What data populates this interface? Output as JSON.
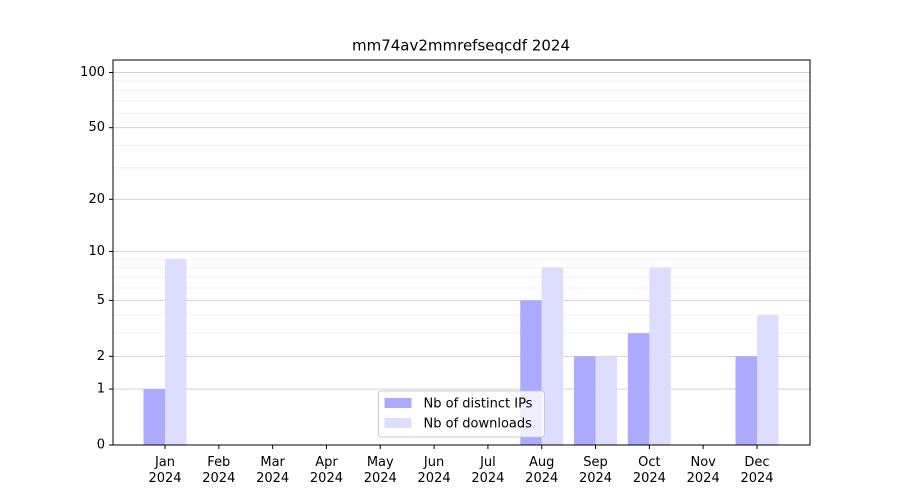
{
  "chart_data": {
    "type": "bar",
    "title": "mm74av2mmrefseqcdf 2024",
    "categories": [
      "Jan 2024",
      "Feb 2024",
      "Mar 2024",
      "Apr 2024",
      "May 2024",
      "Jun 2024",
      "Jul 2024",
      "Aug 2024",
      "Sep 2024",
      "Oct 2024",
      "Nov 2024",
      "Dec 2024"
    ],
    "series": [
      {
        "name": "Nb of distinct IPs",
        "color": "#aaaaff",
        "values": [
          1,
          0,
          0,
          0,
          0,
          0,
          0,
          5,
          2,
          3,
          0,
          2
        ]
      },
      {
        "name": "Nb of downloads",
        "color": "#ddddff",
        "values": [
          9,
          0,
          0,
          0,
          0,
          0,
          0,
          8,
          2,
          8,
          0,
          4
        ]
      }
    ],
    "yscale": "log1p",
    "ylim": [
      0,
      117
    ],
    "yticks": [
      0,
      1,
      2,
      5,
      10,
      20,
      50,
      100
    ],
    "yminor": [
      3,
      4,
      6,
      7,
      8,
      9,
      30,
      40,
      60,
      70,
      80,
      90
    ],
    "grid": true,
    "legend": "lower center"
  }
}
